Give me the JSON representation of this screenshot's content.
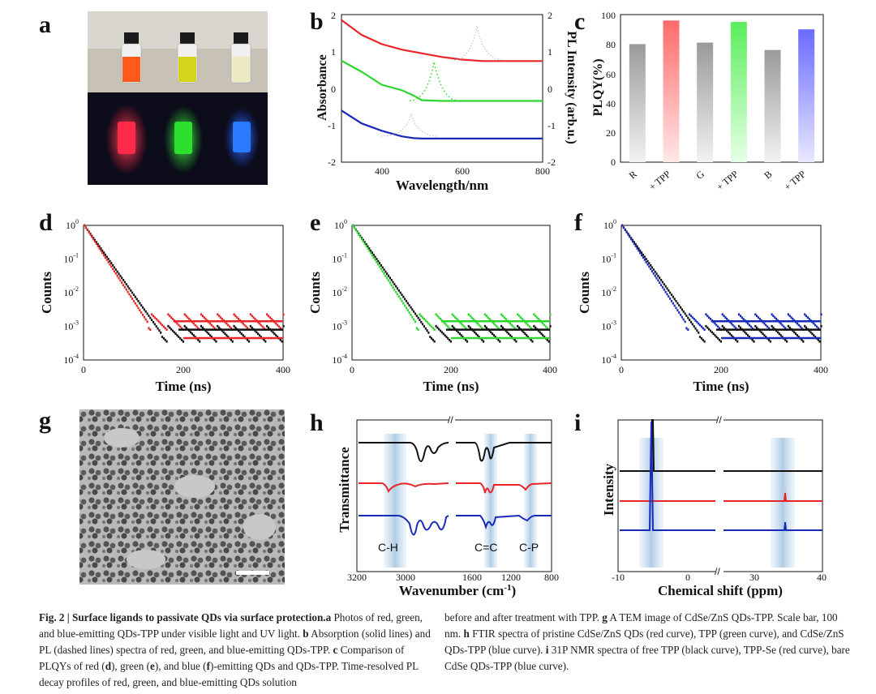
{
  "panels": {
    "a": "a",
    "b": "b",
    "c": "c",
    "d": "d",
    "e": "e",
    "f": "f",
    "g": "g",
    "h": "h",
    "i": "i"
  },
  "colors": {
    "red": "#e8262a",
    "green": "#2ed62e",
    "blue": "#1a2ab8",
    "black": "#111111"
  },
  "chart_data": [
    {
      "panel": "b",
      "type": "line",
      "xlabel": "Wavelength/nm",
      "ylabel_left": "Absorbance",
      "ylabel_right": "PL Intensity (arb.u.)",
      "xlim": [
        300,
        800
      ],
      "ylim": [
        -2,
        2
      ],
      "x_ticks": [
        "400",
        "600",
        "800"
      ],
      "y_ticks": [
        "-2",
        "-1",
        "0",
        "1",
        "2"
      ],
      "series": [
        {
          "color": "red",
          "x": [
            300,
            350,
            400,
            450,
            500,
            550,
            600,
            650,
            700,
            800
          ],
          "y": [
            1.85,
            1.45,
            1.2,
            1.05,
            0.95,
            0.85,
            0.78,
            0.74,
            0.74,
            0.74
          ]
        },
        {
          "color": "green",
          "x": [
            300,
            350,
            400,
            450,
            480,
            500,
            550,
            600,
            700,
            800
          ],
          "y": [
            0.75,
            0.45,
            0.1,
            -0.05,
            -0.2,
            -0.32,
            -0.34,
            -0.34,
            -0.34,
            -0.34
          ]
        },
        {
          "color": "blue",
          "x": [
            300,
            350,
            400,
            450,
            480,
            500,
            600,
            700,
            800
          ],
          "y": [
            -0.6,
            -0.95,
            -1.15,
            -1.3,
            -1.35,
            -1.36,
            -1.36,
            -1.36,
            -1.36
          ]
        }
      ]
    },
    {
      "panel": "c",
      "type": "bar",
      "ylabel": "PLQY(%)",
      "ylim": [
        0,
        100
      ],
      "y_ticks": [
        "0",
        "20",
        "40",
        "60",
        "80",
        "100"
      ],
      "categories": [
        "R",
        "+ TPP",
        "G",
        "+ TPP",
        "B",
        "+ TPP"
      ],
      "values": [
        80,
        96,
        81,
        95,
        76,
        90
      ],
      "bar_colors": [
        "gray",
        "red",
        "gray",
        "green",
        "gray",
        "blue"
      ]
    },
    {
      "panel": "d",
      "type": "scatter",
      "xlabel": "Time (ns)",
      "ylabel": "Counts",
      "xlim": [
        0,
        400
      ],
      "ylim_log": [
        -4,
        0
      ],
      "x_ticks": [
        "0",
        "200",
        "400"
      ],
      "y_ticks": [
        "10-4",
        "10-3",
        "10-2",
        "10-1",
        "100"
      ],
      "series_colors": [
        "black",
        "red"
      ]
    },
    {
      "panel": "e",
      "type": "scatter",
      "xlabel": "Time (ns)",
      "ylabel": "Counts",
      "xlim": [
        0,
        400
      ],
      "ylim_log": [
        -4,
        0
      ],
      "x_ticks": [
        "0",
        "200",
        "400"
      ],
      "y_ticks": [
        "10-4",
        "10-3",
        "10-2",
        "10-1",
        "100"
      ],
      "series_colors": [
        "black",
        "green"
      ]
    },
    {
      "panel": "f",
      "type": "scatter",
      "xlabel": "Time (ns)",
      "ylabel": "Counts",
      "xlim": [
        0,
        400
      ],
      "ylim_log": [
        -4,
        0
      ],
      "x_ticks": [
        "0",
        "200",
        "400"
      ],
      "y_ticks": [
        "10-4",
        "10-3",
        "10-2",
        "10-1",
        "100"
      ],
      "series_colors": [
        "black",
        "blue"
      ]
    },
    {
      "panel": "h",
      "type": "line",
      "xlabel": "Wavenumber (cm-1)",
      "ylabel": "Transmittance",
      "x_ticks": [
        "3200",
        "3000",
        "1600",
        "1200",
        "800"
      ],
      "annotations": [
        "C-H",
        "C=C",
        "C-P"
      ],
      "series_colors": [
        "black",
        "red",
        "blue"
      ]
    },
    {
      "panel": "i",
      "type": "line",
      "xlabel": "Chemical shift (ppm)",
      "ylabel": "Intensity",
      "x_ticks": [
        "-10",
        "0",
        "30",
        "40"
      ],
      "series_colors": [
        "black",
        "red",
        "blue"
      ]
    }
  ],
  "caption": {
    "fig_label": "Fig. 2 | Surface ligands to passivate QDs via surface protection.",
    "col1": [
      {
        "b": "a",
        "t": " Photos of red, green, and blue-emitting QDs-TPP under visible light and UV light. "
      },
      {
        "b": "b",
        "t": " Absorption (solid lines) and PL (dashed lines) spectra of red, green, and blue-emitting QDs-TPP. "
      },
      {
        "b": "c",
        "t": " Comparison of PLQYs of red ("
      },
      {
        "b": "d",
        "t": "), green ("
      },
      {
        "b": "e",
        "t": "), and blue ("
      },
      {
        "b": "f",
        "t": ")-emitting QDs and QDs-TPP. Time-resolved PL decay profiles of red, green, and blue-emitting QDs solution"
      }
    ],
    "col2": [
      {
        "b": "",
        "t": "before and after treatment with TPP. "
      },
      {
        "b": "g",
        "t": " A TEM image of CdSe/ZnS QDs-TPP. Scale bar, 100 nm. "
      },
      {
        "b": "h",
        "t": " FTIR spectra of pristine CdSe/ZnS QDs (red curve), TPP (green curve), and CdSe/ZnS QDs-TPP (blue curve). "
      },
      {
        "b": "i",
        "t": " 31P NMR spectra of free TPP (black curve), TPP-Se (red curve), bare CdSe QDs-TPP (blue curve)."
      }
    ]
  }
}
